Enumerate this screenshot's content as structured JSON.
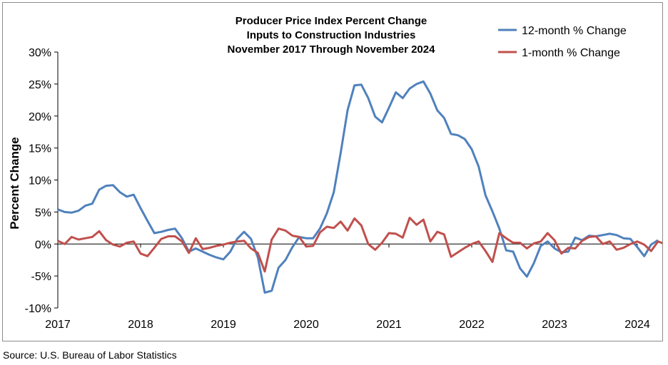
{
  "source": "Source: U.S. Bureau of Labor Statistics",
  "chart_data": {
    "type": "line",
    "title": [
      "Producer Price Index Percent Change",
      "Inputs to Construction Industries",
      "November 2017 Through November 2024"
    ],
    "xlabel": "",
    "ylabel": "Percent Change",
    "x_ticks": [
      "2017",
      "2018",
      "2019",
      "2020",
      "2021",
      "2022",
      "2023",
      "2024"
    ],
    "y_ticks": [
      "30%",
      "25%",
      "20%",
      "15%",
      "10%",
      "5%",
      "0%",
      "-5%",
      "-10%"
    ],
    "ylim": [
      -10,
      30
    ],
    "xlim": [
      "2017-01",
      "2024-01"
    ],
    "grid": false,
    "legend_position": "top-right",
    "series": [
      {
        "name": "12-month % Change",
        "color": "#4f81bd",
        "points": [
          [
            "2017-01",
            5.4
          ],
          [
            "2017-02",
            5.0
          ],
          [
            "2017-03",
            4.9
          ],
          [
            "2017-04",
            5.2
          ],
          [
            "2017-05",
            6.0
          ],
          [
            "2017-06",
            6.3
          ],
          [
            "2017-07",
            8.5
          ],
          [
            "2017-08",
            9.1
          ],
          [
            "2017-09",
            9.2
          ],
          [
            "2017-10",
            8.1
          ],
          [
            "2017-11",
            7.4
          ],
          [
            "2017-12",
            7.7
          ],
          [
            "2018-01",
            5.6
          ],
          [
            "2018-02",
            3.6
          ],
          [
            "2018-03",
            1.7
          ],
          [
            "2018-04",
            1.9
          ],
          [
            "2018-05",
            2.2
          ],
          [
            "2018-06",
            2.4
          ],
          [
            "2018-07",
            0.9
          ],
          [
            "2018-08",
            -1.2
          ],
          [
            "2018-09",
            -0.7
          ],
          [
            "2018-10",
            -1.2
          ],
          [
            "2018-11",
            -1.7
          ],
          [
            "2018-12",
            -2.1
          ],
          [
            "2019-01",
            -2.4
          ],
          [
            "2019-02",
            -1.2
          ],
          [
            "2019-03",
            0.8
          ],
          [
            "2019-04",
            1.9
          ],
          [
            "2019-05",
            0.8
          ],
          [
            "2019-06",
            -2.1
          ],
          [
            "2019-07",
            -7.6
          ],
          [
            "2019-08",
            -7.3
          ],
          [
            "2019-09",
            -3.7
          ],
          [
            "2019-10",
            -2.5
          ],
          [
            "2019-11",
            -0.5
          ],
          [
            "2019-12",
            1.1
          ],
          [
            "2020-01",
            0.9
          ],
          [
            "2020-02",
            0.9
          ],
          [
            "2020-03",
            2.4
          ],
          [
            "2020-04",
            4.8
          ],
          [
            "2020-05",
            8.1
          ],
          [
            "2020-06",
            14.2
          ],
          [
            "2020-07",
            20.9
          ],
          [
            "2020-08",
            24.8
          ],
          [
            "2020-09",
            24.9
          ],
          [
            "2020-10",
            22.8
          ],
          [
            "2020-11",
            19.9
          ],
          [
            "2020-12",
            19.0
          ],
          [
            "2021-01",
            21.3
          ],
          [
            "2021-02",
            23.7
          ],
          [
            "2021-03",
            22.8
          ],
          [
            "2021-04",
            24.3
          ],
          [
            "2021-05",
            25.0
          ],
          [
            "2021-06",
            25.4
          ],
          [
            "2021-07",
            23.5
          ],
          [
            "2021-08",
            20.9
          ],
          [
            "2021-09",
            19.7
          ],
          [
            "2021-10",
            17.2
          ],
          [
            "2021-11",
            17.0
          ],
          [
            "2021-12",
            16.4
          ],
          [
            "2022-01",
            14.8
          ],
          [
            "2022-02",
            12.1
          ],
          [
            "2022-03",
            7.6
          ],
          [
            "2022-04",
            5.1
          ],
          [
            "2022-05",
            2.4
          ],
          [
            "2022-06",
            -1.0
          ],
          [
            "2022-07",
            -1.2
          ],
          [
            "2022-08",
            -3.8
          ],
          [
            "2022-09",
            -5.1
          ],
          [
            "2022-10",
            -3.0
          ],
          [
            "2022-11",
            -0.3
          ],
          [
            "2022-12",
            0.4
          ],
          [
            "2023-01",
            -0.7
          ],
          [
            "2023-02",
            -1.3
          ],
          [
            "2023-03",
            -1.2
          ],
          [
            "2023-04",
            1.0
          ],
          [
            "2023-05",
            0.6
          ],
          [
            "2023-06",
            1.3
          ],
          [
            "2023-07",
            1.2
          ],
          [
            "2023-08",
            1.4
          ],
          [
            "2023-09",
            1.6
          ],
          [
            "2023-10",
            1.4
          ],
          [
            "2023-11",
            0.9
          ],
          [
            "2023-12",
            0.8
          ],
          [
            "2024-01",
            -0.5
          ],
          [
            "2024-02",
            -1.9
          ],
          [
            "2024-03",
            -0.1
          ],
          [
            "2024-04",
            0.6
          ]
        ]
      },
      {
        "name": "1-month % Change",
        "color": "#c0504d",
        "points": [
          [
            "2017-01",
            0.5
          ],
          [
            "2017-02",
            0.0
          ],
          [
            "2017-03",
            1.1
          ],
          [
            "2017-04",
            0.7
          ],
          [
            "2017-05",
            0.9
          ],
          [
            "2017-06",
            1.1
          ],
          [
            "2017-07",
            2.0
          ],
          [
            "2017-08",
            0.6
          ],
          [
            "2017-09",
            -0.1
          ],
          [
            "2017-10",
            -0.4
          ],
          [
            "2017-11",
            0.2
          ],
          [
            "2017-12",
            0.4
          ],
          [
            "2018-01",
            -1.5
          ],
          [
            "2018-02",
            -1.9
          ],
          [
            "2018-03",
            -0.6
          ],
          [
            "2018-04",
            0.8
          ],
          [
            "2018-05",
            1.2
          ],
          [
            "2018-06",
            1.2
          ],
          [
            "2018-07",
            0.4
          ],
          [
            "2018-08",
            -1.4
          ],
          [
            "2018-09",
            0.9
          ],
          [
            "2018-10",
            -0.8
          ],
          [
            "2018-11",
            -0.6
          ],
          [
            "2018-12",
            -0.3
          ],
          [
            "2019-01",
            -0.1
          ],
          [
            "2019-02",
            0.2
          ],
          [
            "2019-03",
            0.4
          ],
          [
            "2019-04",
            0.5
          ],
          [
            "2019-05",
            -0.7
          ],
          [
            "2019-06",
            -1.4
          ],
          [
            "2019-07",
            -4.3
          ],
          [
            "2019-08",
            0.7
          ],
          [
            "2019-09",
            2.4
          ],
          [
            "2019-10",
            2.1
          ],
          [
            "2019-11",
            1.3
          ],
          [
            "2019-12",
            1.1
          ],
          [
            "2020-01",
            -0.4
          ],
          [
            "2020-02",
            -0.3
          ],
          [
            "2020-03",
            1.8
          ],
          [
            "2020-04",
            2.7
          ],
          [
            "2020-05",
            2.5
          ],
          [
            "2020-06",
            3.5
          ],
          [
            "2020-07",
            2.1
          ],
          [
            "2020-08",
            4.0
          ],
          [
            "2020-09",
            2.9
          ],
          [
            "2020-10",
            0.0
          ],
          [
            "2020-11",
            -0.9
          ],
          [
            "2020-12",
            0.2
          ],
          [
            "2021-01",
            1.7
          ],
          [
            "2021-02",
            1.6
          ],
          [
            "2021-03",
            1.0
          ],
          [
            "2021-04",
            4.1
          ],
          [
            "2021-05",
            3.0
          ],
          [
            "2021-06",
            3.8
          ],
          [
            "2021-07",
            0.4
          ],
          [
            "2021-08",
            1.9
          ],
          [
            "2021-09",
            1.5
          ],
          [
            "2021-10",
            -2.0
          ],
          [
            "2021-11",
            -1.3
          ],
          [
            "2021-12",
            -0.6
          ],
          [
            "2022-01",
            0.0
          ],
          [
            "2022-02",
            0.4
          ],
          [
            "2022-03",
            -1.1
          ],
          [
            "2022-04",
            -2.8
          ],
          [
            "2022-05",
            1.7
          ],
          [
            "2022-06",
            0.9
          ],
          [
            "2022-07",
            0.2
          ],
          [
            "2022-08",
            0.2
          ],
          [
            "2022-09",
            -0.7
          ],
          [
            "2022-10",
            0.1
          ],
          [
            "2022-11",
            0.4
          ],
          [
            "2022-12",
            1.7
          ],
          [
            "2023-01",
            0.6
          ],
          [
            "2023-02",
            -1.5
          ],
          [
            "2023-03",
            -0.6
          ],
          [
            "2023-04",
            -0.7
          ],
          [
            "2023-05",
            0.5
          ],
          [
            "2023-06",
            1.1
          ],
          [
            "2023-07",
            1.2
          ],
          [
            "2023-08",
            0.0
          ],
          [
            "2023-09",
            0.4
          ],
          [
            "2023-10",
            -0.9
          ],
          [
            "2023-11",
            -0.6
          ],
          [
            "2023-12",
            0.0
          ],
          [
            "2024-01",
            0.4
          ],
          [
            "2024-02",
            -0.1
          ],
          [
            "2024-03",
            -1.1
          ],
          [
            "2024-04",
            0.4
          ],
          [
            "2024-05",
            0.0
          ]
        ]
      }
    ]
  }
}
